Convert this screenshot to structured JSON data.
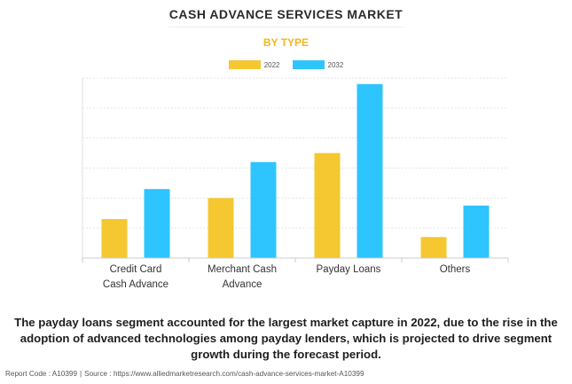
{
  "chart_data": {
    "type": "bar",
    "title": "CASH ADVANCE SERVICES MARKET",
    "subtitle": "BY TYPE",
    "categories": [
      [
        "Credit Card",
        "Cash Advance"
      ],
      [
        "Merchant Cash",
        "Advance"
      ],
      [
        "Payday Loans"
      ],
      [
        "Others"
      ]
    ],
    "series": [
      {
        "name": "2022",
        "color": "#f5c730",
        "values": [
          1.3,
          2.0,
          3.5,
          0.7
        ]
      },
      {
        "name": "2032",
        "color": "#2ec5ff",
        "values": [
          2.3,
          3.2,
          5.8,
          1.75
        ]
      }
    ],
    "ylim": [
      0,
      6.0
    ],
    "grid": true,
    "legend_position": "top-center",
    "xlabel": "",
    "ylabel": ""
  },
  "caption": "The payday loans segment accounted for the largest market capture in 2022, due to the rise in the adoption of advanced technologies among payday lenders, which is projected to drive segment growth during the forecast period.",
  "footer": {
    "report_code": "Report Code : A10399",
    "separator": "|",
    "source": "Source : https://www.alliedmarketresearch.com/cash-advance-services-market-A10399"
  }
}
